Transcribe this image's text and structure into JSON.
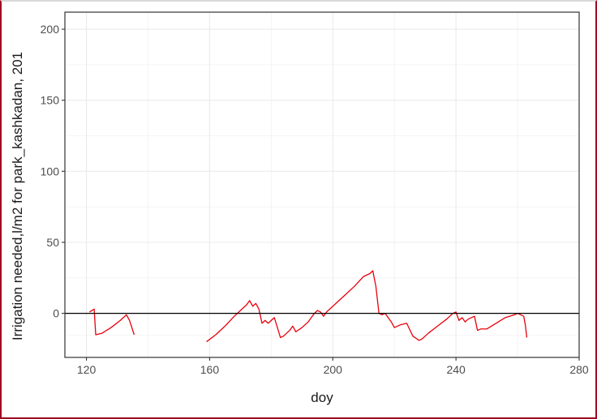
{
  "chart_data": {
    "type": "line",
    "title": "",
    "xlabel": "doy",
    "ylabel": "Irrigation needed,l/m2 for park_kashkadan, 201",
    "xlim": [
      113,
      280
    ],
    "ylim": [
      -31,
      212
    ],
    "x_ticks": [
      120,
      160,
      200,
      240,
      280
    ],
    "y_ticks": [
      0,
      50,
      100,
      150,
      200
    ],
    "x_tick_labels": [
      "120",
      "160",
      "200",
      "240",
      "280"
    ],
    "y_tick_labels": [
      "0",
      "50",
      "100",
      "150",
      "200"
    ],
    "grid": true,
    "reference_line": {
      "y": 0,
      "color": "#000000"
    },
    "series": [
      {
        "color": "#e8000b",
        "segments": [
          [
            [
              121,
              1
            ],
            [
              122.5,
              3
            ],
            [
              123,
              -15
            ],
            [
              125,
              -14
            ],
            [
              128,
              -10
            ],
            [
              131,
              -5
            ],
            [
              133,
              -1
            ],
            [
              134,
              -5
            ],
            [
              135.5,
              -15
            ]
          ],
          [
            [
              159,
              -20
            ],
            [
              162,
              -15
            ],
            [
              165,
              -9
            ],
            [
              168,
              -2
            ],
            [
              170,
              2
            ],
            [
              172,
              6
            ],
            [
              173,
              9
            ],
            [
              174,
              5
            ],
            [
              175,
              7
            ],
            [
              176,
              3
            ],
            [
              177,
              -7
            ],
            [
              178,
              -5
            ],
            [
              179,
              -7
            ],
            [
              180,
              -5
            ],
            [
              181,
              -3
            ],
            [
              182,
              -10
            ],
            [
              183,
              -17
            ],
            [
              184,
              -16
            ],
            [
              186,
              -12
            ],
            [
              187,
              -9
            ],
            [
              188,
              -13
            ],
            [
              190,
              -10
            ],
            [
              192,
              -6
            ],
            [
              194,
              0
            ],
            [
              195,
              2
            ],
            [
              196,
              1
            ],
            [
              197,
              -2
            ],
            [
              198,
              1
            ],
            [
              201,
              7
            ],
            [
              204,
              13
            ],
            [
              207,
              19
            ],
            [
              210,
              26
            ],
            [
              212,
              28
            ],
            [
              213,
              30
            ],
            [
              214,
              19
            ],
            [
              215,
              0
            ],
            [
              216,
              -1
            ],
            [
              217,
              0
            ],
            [
              219,
              -6
            ],
            [
              220,
              -10
            ],
            [
              222,
              -8
            ],
            [
              224,
              -7
            ],
            [
              226,
              -16
            ],
            [
              228,
              -19
            ],
            [
              229,
              -18
            ],
            [
              231,
              -14
            ],
            [
              234,
              -9
            ],
            [
              237,
              -4
            ],
            [
              239,
              0
            ],
            [
              240,
              1
            ],
            [
              241,
              -5
            ],
            [
              242,
              -3
            ],
            [
              243,
              -6
            ],
            [
              244,
              -4
            ],
            [
              246,
              -2
            ],
            [
              247,
              -12
            ],
            [
              248,
              -11
            ],
            [
              250,
              -11
            ],
            [
              253,
              -7
            ],
            [
              256,
              -3
            ],
            [
              259,
              -1
            ],
            [
              260,
              0
            ],
            [
              262,
              -2
            ],
            [
              262.5,
              -8
            ],
            [
              263,
              -17
            ]
          ]
        ]
      }
    ]
  }
}
